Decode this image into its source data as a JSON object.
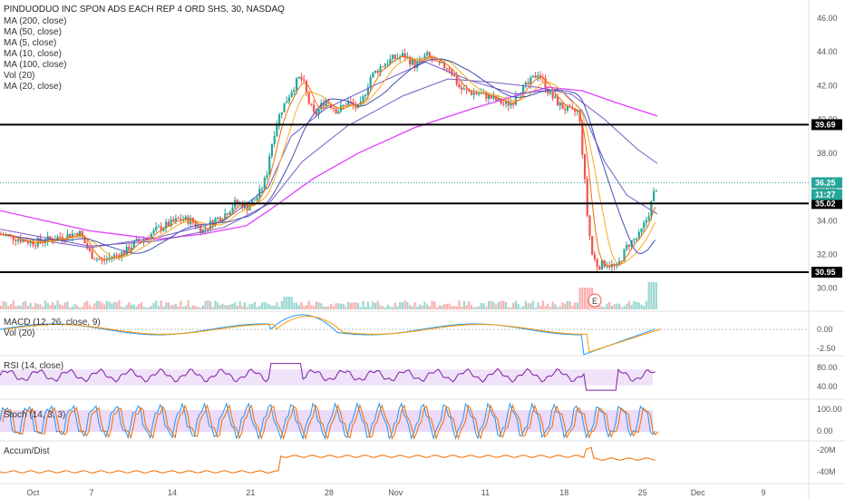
{
  "header": {
    "title": "PINDUODUO INC SPON ADS EACH REP 4 ORD SHS, 30, NASDAQ",
    "indicators": [
      "MA (200, close)",
      "MA (50, close)",
      "MA (5, close)",
      "MA (10, close)",
      "MA (100, close)",
      "Vol (20)",
      "MA (20, close)"
    ]
  },
  "panes": {
    "macd_label": "MACD (12, 26, close, 9)",
    "vol_label": "Vol (20)",
    "rsi_label": "RSI (14, close)",
    "stoch_label": "Stoch (14, 3, 3)",
    "accum_label": "Accum/Dist"
  },
  "price_tags": {
    "last": "36.25",
    "countdown": "11:27"
  },
  "earnings_marker": "E",
  "colors": {
    "up": "#26a69a",
    "down": "#ef5350",
    "ma200": "#e040fb",
    "ma50": "#6a5acd",
    "ma5": "#ef6c00",
    "ma10": "#f9a825",
    "ma100": "#7e57c2",
    "ma20": "#3f51b5",
    "macd": "#2196f3",
    "signal": "#ff9800",
    "rsi": "#7b1fa2",
    "stoch_k": "#2196f3",
    "stoch_d": "#ef6c00",
    "accum": "#ef6c00",
    "band": "#e9d6f7"
  },
  "chart_data": {
    "type": "candlestick",
    "symbol": "PINDUODUO INC SPON ADS EACH REP 4 ORD SHS",
    "interval": "30",
    "exchange": "NASDAQ",
    "x_ticks": [
      "Oct",
      "7",
      "14",
      "21",
      "28",
      "Nov",
      "11",
      "18",
      "25",
      "Dec",
      "9"
    ],
    "price_axis": {
      "ticks": [
        "46.00",
        "44.00",
        "42.00",
        "40.00",
        "38.00",
        "36.00",
        "34.00",
        "32.00",
        "30.00"
      ],
      "range": [
        29.5,
        47.0
      ]
    },
    "horizontal_levels": [
      {
        "value": 39.69,
        "label": "39.69"
      },
      {
        "value": 35.02,
        "label": "35.02"
      },
      {
        "value": 30.95,
        "label": "30.95"
      }
    ],
    "last_price": 36.25,
    "close_path": [
      [
        0,
        33.2
      ],
      [
        3,
        32.7
      ],
      [
        5,
        33.0
      ],
      [
        7,
        33.3
      ],
      [
        8,
        32.0
      ],
      [
        9,
        31.6
      ],
      [
        10,
        31.9
      ],
      [
        11,
        32.1
      ],
      [
        12,
        32.7
      ],
      [
        13,
        33.0
      ],
      [
        14,
        33.5
      ],
      [
        15,
        33.8
      ],
      [
        16,
        34.1
      ],
      [
        17,
        34.0
      ],
      [
        18,
        33.4
      ],
      [
        19,
        34.0
      ],
      [
        20,
        34.4
      ],
      [
        21,
        35.1
      ],
      [
        22,
        34.8
      ],
      [
        23,
        35.5
      ],
      [
        23.7,
        36.6
      ],
      [
        24,
        38.0
      ],
      [
        24.5,
        39.5
      ],
      [
        25,
        40.5
      ],
      [
        25.7,
        41.4
      ],
      [
        26,
        41.8
      ],
      [
        26.7,
        42.5
      ],
      [
        27,
        42.2
      ],
      [
        27.5,
        41.0
      ],
      [
        28,
        40.2
      ],
      [
        29,
        41.2
      ],
      [
        30,
        40.5
      ],
      [
        31,
        41.0
      ],
      [
        32,
        40.6
      ],
      [
        33,
        42.5
      ],
      [
        34,
        43.2
      ],
      [
        35,
        43.6
      ],
      [
        36,
        43.8
      ],
      [
        37,
        43.2
      ],
      [
        38,
        43.8
      ],
      [
        39,
        43.2
      ],
      [
        40,
        43.1
      ],
      [
        41,
        41.8
      ],
      [
        42,
        41.6
      ],
      [
        43,
        41.5
      ],
      [
        44,
        41.2
      ],
      [
        45,
        40.9
      ],
      [
        45.7,
        41.0
      ],
      [
        46,
        41.6
      ],
      [
        47,
        42.0
      ],
      [
        48,
        42.8
      ],
      [
        49,
        41.5
      ],
      [
        50,
        40.8
      ],
      [
        51,
        40.4
      ],
      [
        51.6,
        40.5
      ],
      [
        52,
        37.5
      ],
      [
        52.4,
        34.0
      ],
      [
        52.8,
        32.0
      ],
      [
        53.3,
        31.3
      ],
      [
        54,
        31.5
      ],
      [
        55,
        31.2
      ],
      [
        56,
        32.6
      ],
      [
        57,
        33.1
      ],
      [
        57.8,
        34.3
      ],
      [
        58.3,
        35.6
      ],
      [
        58.7,
        36.3
      ]
    ],
    "ma200_path": [
      [
        0,
        34.6
      ],
      [
        8,
        33.4
      ],
      [
        14,
        32.9
      ],
      [
        18,
        33.2
      ],
      [
        22,
        33.7
      ],
      [
        24,
        34.6
      ],
      [
        28,
        36.5
      ],
      [
        32,
        38.0
      ],
      [
        37,
        39.5
      ],
      [
        42,
        40.6
      ],
      [
        46,
        41.4
      ],
      [
        49,
        41.9
      ],
      [
        52,
        41.7
      ],
      [
        55,
        41.0
      ],
      [
        58.7,
        40.2
      ]
    ],
    "ma100_path": [
      [
        0,
        33.5
      ],
      [
        8,
        32.5
      ],
      [
        14,
        32.8
      ],
      [
        20,
        33.6
      ],
      [
        24,
        35.0
      ],
      [
        27,
        37.5
      ],
      [
        31,
        39.6
      ],
      [
        36,
        41.4
      ],
      [
        40,
        42.4
      ],
      [
        44,
        42.2
      ],
      [
        48,
        41.9
      ],
      [
        51,
        41.5
      ],
      [
        54,
        40.0
      ],
      [
        57,
        38.2
      ],
      [
        58.7,
        37.4
      ]
    ],
    "ma50_path": [
      [
        0,
        33.2
      ],
      [
        8,
        32.4
      ],
      [
        14,
        33.0
      ],
      [
        20,
        34.0
      ],
      [
        24,
        36.0
      ],
      [
        26,
        39.0
      ],
      [
        29,
        40.6
      ],
      [
        34,
        42.2
      ],
      [
        38,
        43.4
      ],
      [
        42,
        42.3
      ],
      [
        46,
        41.5
      ],
      [
        50,
        41.8
      ],
      [
        52,
        40.5
      ],
      [
        54,
        37.5
      ],
      [
        56,
        35.5
      ],
      [
        58.7,
        34.4
      ]
    ],
    "rsi_range": [
      0,
      100
    ],
    "rsi_band": [
      30,
      70
    ],
    "rsi_ticks": [
      "80.00",
      "40.00"
    ],
    "macd_ticks": [
      "0.00",
      "-2.50"
    ],
    "stoch_range": [
      0,
      100
    ],
    "stoch_band": [
      20,
      80
    ],
    "stoch_ticks": [
      "100.00",
      "0.00"
    ],
    "accum_ticks": [
      "-20M",
      "-40M"
    ]
  }
}
